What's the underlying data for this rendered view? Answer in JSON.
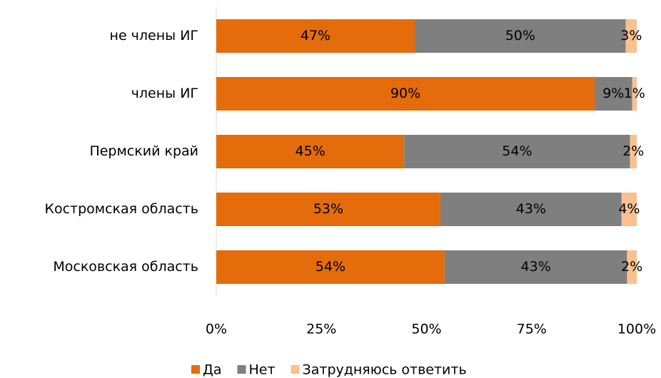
{
  "chart_data": {
    "type": "stacked-barh",
    "categories": [
      "не члены ИГ",
      "члены ИГ",
      "Пермский край",
      "Костромская область",
      "Московская область"
    ],
    "series": [
      {
        "name": "Да",
        "color": "#e46c0a",
        "values": [
          47.2,
          90.0,
          44.7,
          53.3,
          54.3
        ],
        "value_labels": [
          "47%",
          "90%",
          "45%",
          "53%",
          "54%"
        ]
      },
      {
        "name": "Нет",
        "color": "#7f7f7f",
        "values": [
          50.2,
          8.9,
          53.7,
          43.1,
          43.4
        ],
        "value_labels": [
          "50%",
          "9%",
          "54%",
          "43%",
          "43%"
        ]
      },
      {
        "name": "Затрудняюсь ответить",
        "color": "#fac090",
        "values": [
          2.6,
          1.1,
          1.6,
          3.6,
          2.3
        ],
        "value_labels": [
          "3%",
          "1%",
          "2%",
          "4%",
          "2%"
        ]
      }
    ],
    "xlim": [
      0,
      100
    ],
    "xticks": [
      {
        "value": 0,
        "label": "0%"
      },
      {
        "value": 25,
        "label": "25%"
      },
      {
        "value": 50,
        "label": "50%"
      },
      {
        "value": 75,
        "label": "75%"
      },
      {
        "value": 100,
        "label": "100%"
      }
    ],
    "legend": "bottom"
  }
}
